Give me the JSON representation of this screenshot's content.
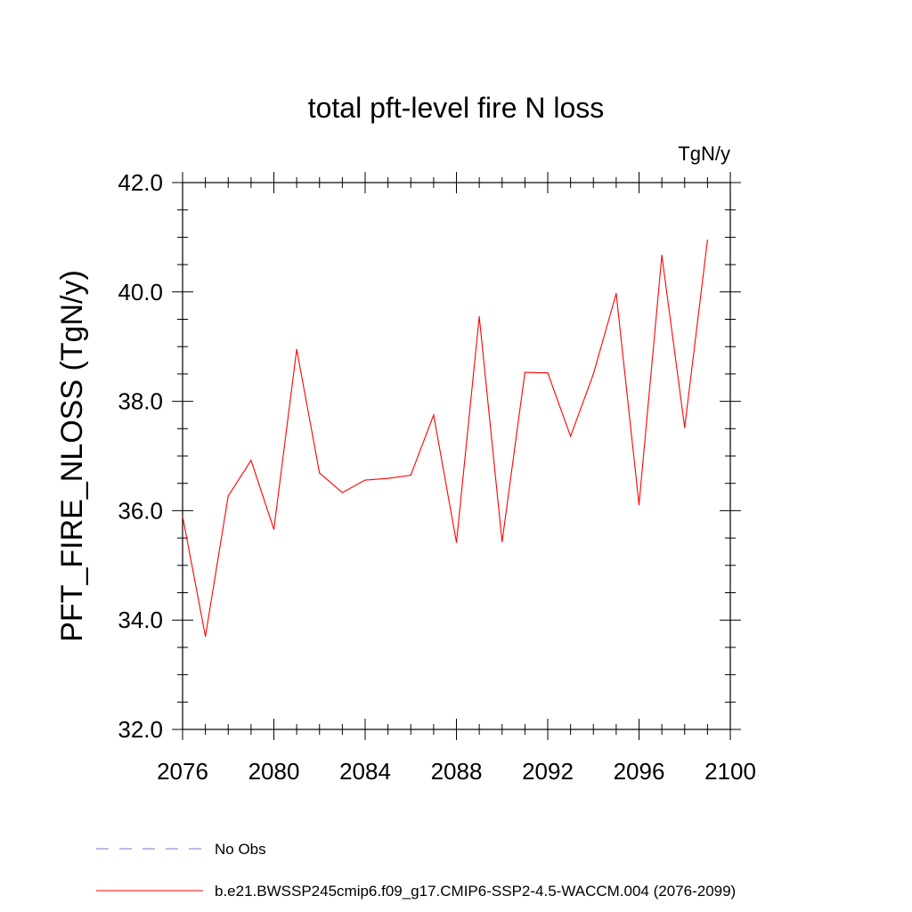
{
  "chart_data": {
    "type": "line",
    "title": "total pft-level fire N loss",
    "units": "TgN/y",
    "ylabel": "PFT_FIRE_NLOSS  (TgN/y)",
    "xlabel": "",
    "xlim": [
      2076,
      2100
    ],
    "ylim": [
      32,
      42
    ],
    "x_ticks": [
      2076,
      2080,
      2084,
      2088,
      2092,
      2096,
      2100
    ],
    "x_tick_labels": [
      "2076",
      "2080",
      "2084",
      "2088",
      "2092",
      "2096",
      "2100"
    ],
    "y_ticks": [
      32,
      34,
      36,
      38,
      40,
      42
    ],
    "y_tick_labels": [
      "32.0",
      "34.0",
      "36.0",
      "38.0",
      "40.0",
      "42.0"
    ],
    "grid": false,
    "legend_position": "bottom-left",
    "legend": [
      {
        "label": "No Obs",
        "color": "#7b72c4",
        "style": "dashed"
      },
      {
        "label": "b.e21.BWSSP245cmip6.f09_g17.CMIP6-SSP2-4.5-WACCM.004 (2076-2099)",
        "color": "#ff0000",
        "style": "solid"
      }
    ],
    "series": [
      {
        "name": "b.e21.BWSSP245cmip6.f09_g17.CMIP6-SSP2-4.5-WACCM.004 (2076-2099)",
        "color": "#ff0000",
        "x": [
          2076,
          2077,
          2078,
          2079,
          2080,
          2081,
          2082,
          2083,
          2084,
          2085,
          2086,
          2087,
          2088,
          2089,
          2090,
          2091,
          2092,
          2093,
          2094,
          2095,
          2096,
          2097,
          2098,
          2099
        ],
        "values": [
          35.9,
          33.7,
          36.27,
          36.92,
          35.66,
          38.95,
          36.69,
          36.33,
          36.56,
          36.59,
          36.65,
          37.75,
          35.42,
          39.55,
          35.43,
          38.53,
          38.52,
          37.36,
          38.5,
          39.97,
          36.11,
          40.67,
          37.52,
          40.95
        ]
      }
    ]
  }
}
